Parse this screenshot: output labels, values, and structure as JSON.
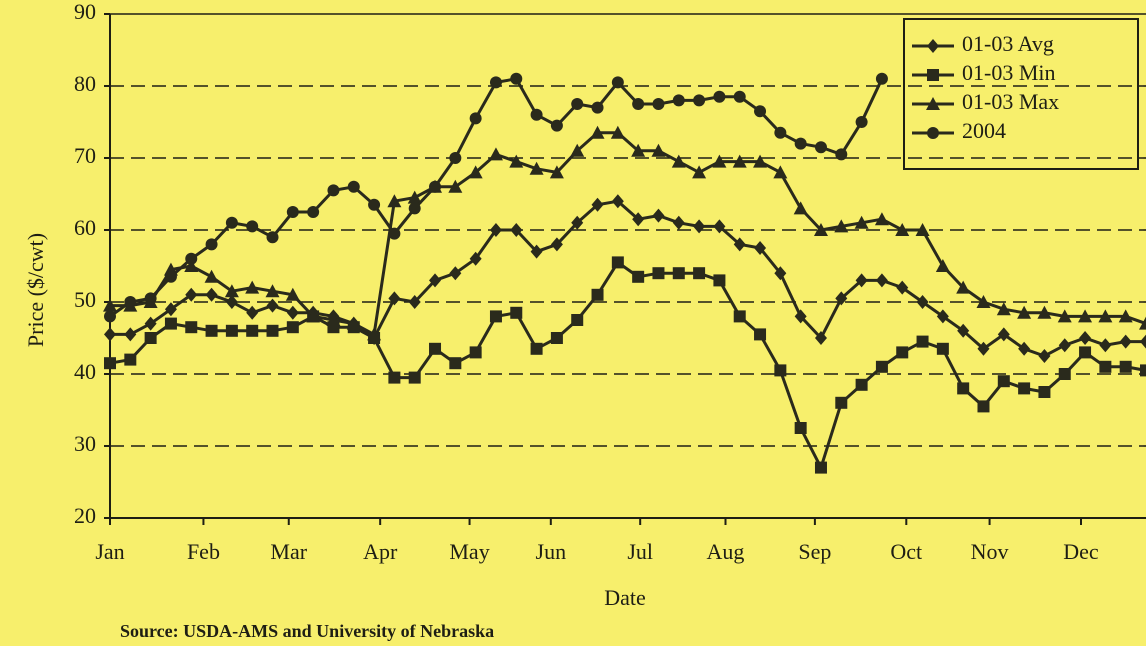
{
  "chart_data": {
    "type": "line",
    "xlabel": "Date",
    "ylabel": "Price ($/cwt)",
    "source": "Source: USDA-AMS and University of Nebraska",
    "x": [
      0,
      1,
      2,
      3,
      4,
      5,
      6,
      7,
      8,
      9,
      10,
      11,
      12,
      13,
      14,
      15,
      16,
      17,
      18,
      19,
      20,
      21,
      22,
      23,
      24,
      25,
      26,
      27,
      28,
      29,
      30,
      31,
      32,
      33,
      34,
      35,
      36,
      37,
      38,
      39,
      40,
      41,
      42,
      43,
      44,
      45,
      46,
      47,
      48,
      49,
      50,
      51
    ],
    "xlim": [
      0,
      51
    ],
    "xticks": [
      {
        "value": 0,
        "label": "Jan"
      },
      {
        "value": 4.6,
        "label": "Feb"
      },
      {
        "value": 8.8,
        "label": "Mar"
      },
      {
        "value": 13.3,
        "label": "Apr"
      },
      {
        "value": 17.7,
        "label": "May"
      },
      {
        "value": 21.7,
        "label": "Jun"
      },
      {
        "value": 26.1,
        "label": "Jul"
      },
      {
        "value": 30.3,
        "label": "Aug"
      },
      {
        "value": 34.7,
        "label": "Sep"
      },
      {
        "value": 39.2,
        "label": "Oct"
      },
      {
        "value": 43.3,
        "label": "Nov"
      },
      {
        "value": 47.8,
        "label": "Dec"
      }
    ],
    "ylim": [
      20,
      90
    ],
    "yticks": [
      20,
      30,
      40,
      50,
      60,
      70,
      80,
      90
    ],
    "grid": true,
    "legend": "upper right",
    "series": [
      {
        "name": "01-03 Avg",
        "color": "#2a2a1c",
        "marker": "diamond",
        "values": [
          45.5,
          45.5,
          47,
          49,
          51,
          51,
          50,
          48.5,
          49.5,
          48.5,
          48.5,
          48,
          47,
          45,
          50.5,
          50,
          53,
          54,
          56,
          60,
          60,
          57,
          58,
          61,
          63.5,
          64,
          61.5,
          62,
          61,
          60.5,
          60.5,
          58,
          57.5,
          54,
          48,
          45,
          50.5,
          53,
          53,
          52,
          50,
          48,
          46,
          43.5,
          45.5,
          43.5,
          42.5,
          44,
          45,
          44,
          44.5,
          44.5
        ]
      },
      {
        "name": "01-03 Min",
        "color": "#2a2a1c",
        "marker": "square",
        "values": [
          41.5,
          42,
          45,
          47,
          46.5,
          46,
          46,
          46,
          46,
          46.5,
          48,
          46.5,
          46.5,
          45,
          39.5,
          39.5,
          43.5,
          41.5,
          43,
          48,
          48.5,
          43.5,
          45,
          47.5,
          51,
          55.5,
          53.5,
          54,
          54,
          54,
          53,
          48,
          45.5,
          40.5,
          32.5,
          27,
          36,
          38.5,
          41,
          43,
          44.5,
          43.5,
          38,
          35.5,
          39,
          38,
          37.5,
          40,
          43,
          41,
          41,
          40.5
        ]
      },
      {
        "name": "01-03 Max",
        "color": "#2a2a1c",
        "marker": "triangle",
        "values": [
          49.5,
          49.5,
          50,
          54.5,
          55,
          53.5,
          51.5,
          52,
          51.5,
          51,
          48,
          47.5,
          47,
          45.5,
          64,
          64.5,
          66,
          66,
          68,
          70.5,
          69.5,
          68.5,
          68,
          71,
          73.5,
          73.5,
          71,
          71,
          69.5,
          68,
          69.5,
          69.5,
          69.5,
          68,
          63,
          60,
          60.5,
          61,
          61.5,
          60,
          60,
          55,
          52,
          50,
          49,
          48.5,
          48.5,
          48,
          48,
          48,
          48,
          47
        ]
      },
      {
        "name": "2004",
        "color": "#2a2a1c",
        "marker": "circle",
        "values": [
          48,
          50,
          50.5,
          53.5,
          56,
          58,
          61,
          60.5,
          59,
          62.5,
          62.5,
          65.5,
          66,
          63.5,
          59.5,
          63,
          66,
          70,
          75.5,
          80.5,
          81,
          76,
          74.5,
          77.5,
          77,
          80.5,
          77.5,
          77.5,
          78,
          78,
          78.5,
          78.5,
          76.5,
          73.5,
          72,
          71.5,
          70.5,
          75,
          81,
          null,
          null,
          null,
          null,
          null,
          null,
          null,
          null,
          null,
          null,
          null,
          null,
          null
        ]
      }
    ]
  }
}
